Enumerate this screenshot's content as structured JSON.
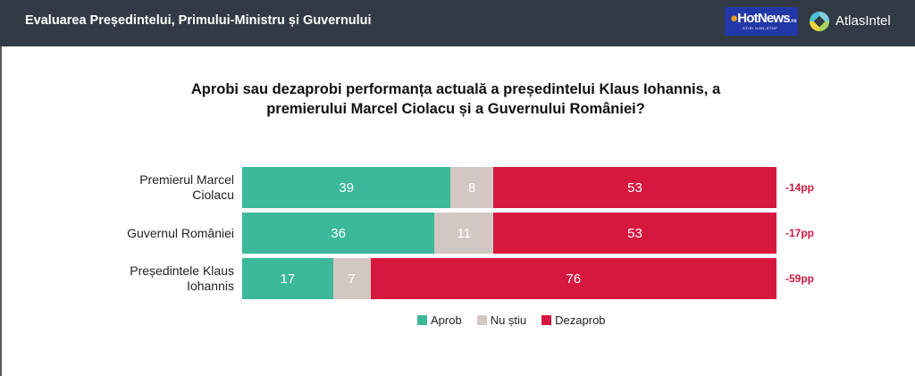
{
  "header": {
    "title": "Evaluarea Președintelui, Primului-Ministru și Guvernului",
    "logos": {
      "hotnews": {
        "text": "HotNews",
        "suffix": ".ro",
        "tagline": "STIRI NON-STOP"
      },
      "atlasintel": {
        "text": "AtlasIntel"
      }
    }
  },
  "colors": {
    "header_bg": "#323a45",
    "approve": "#3cb89a",
    "dont_know": "#d1c8c3",
    "disapprove": "#d6183e",
    "net_text": "#c8193d"
  },
  "chart_data": {
    "type": "bar",
    "orientation": "horizontal-stacked-100",
    "title": "Aprobi sau dezaprobi performanța actuală a președintelui Klaus Iohannis, a premierului Marcel Ciolacu și a Guvernului României?",
    "categories": [
      "Premierul Marcel Ciolacu",
      "Guvernul României",
      "Președintele Klaus Iohannis"
    ],
    "category_lines": [
      [
        "Premierul Marcel",
        "Ciolacu"
      ],
      [
        "Guvernul României"
      ],
      [
        "Președintele Klaus",
        "Iohannis"
      ]
    ],
    "series": [
      {
        "name": "Aprob",
        "values": [
          39,
          36,
          17
        ]
      },
      {
        "name": "Nu știu",
        "values": [
          8,
          11,
          7
        ]
      },
      {
        "name": "Dezaprob",
        "values": [
          53,
          53,
          76
        ]
      }
    ],
    "net_labels": [
      "-14pp",
      "-17pp",
      "-59pp"
    ],
    "xlim": [
      0,
      100
    ],
    "grid": false,
    "legend": "bottom-center",
    "xlabel": "",
    "ylabel": ""
  }
}
